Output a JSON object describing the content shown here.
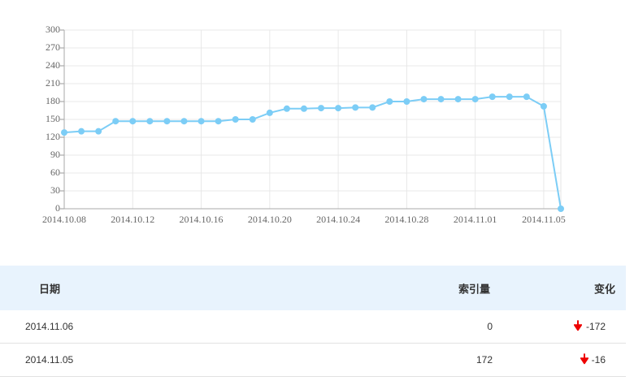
{
  "chart_data": {
    "type": "line",
    "categories": [
      "2014.10.08",
      null,
      null,
      null,
      "2014.10.12",
      null,
      null,
      null,
      "2014.10.16",
      null,
      null,
      null,
      "2014.10.20",
      null,
      null,
      null,
      "2014.10.24",
      null,
      null,
      null,
      "2014.10.28",
      null,
      null,
      null,
      "2014.11.01",
      null,
      null,
      null,
      "2014.11.05",
      null
    ],
    "series": [
      {
        "color": "#7ccdf6",
        "values": [
          128,
          130,
          130,
          147,
          147,
          147,
          147,
          147,
          147,
          147,
          150,
          150,
          161,
          168,
          168,
          169,
          169,
          170,
          170,
          180,
          180,
          184,
          184,
          184,
          184,
          188,
          188,
          188,
          172,
          0
        ]
      }
    ],
    "ylim": [
      0,
      300
    ],
    "yticks": [
      0,
      30,
      60,
      90,
      120,
      150,
      180,
      210,
      240,
      270,
      300
    ],
    "grid": true
  },
  "table": {
    "header": [
      "日期",
      "索引量",
      "变化"
    ],
    "rows": [
      [
        "2014.11.06",
        0,
        -172
      ],
      [
        "2014.11.05",
        172,
        -16
      ]
    ]
  }
}
